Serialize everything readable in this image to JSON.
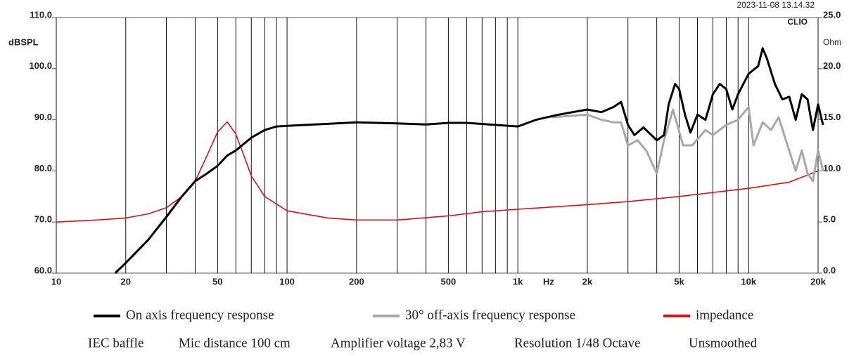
{
  "chart_data": {
    "type": "line",
    "timestamp": "2023-11-08 13.14.32",
    "brand": "CLIO",
    "ylabel": "dBSPL",
    "y2label": "Ohm",
    "xlabel": "Hz",
    "log_x": true,
    "grid": true,
    "xlim": [
      10,
      20000
    ],
    "xticks": [
      10,
      20,
      50,
      100,
      200,
      500,
      {
        "value": 1000,
        "label": "1k"
      },
      {
        "value": 2000,
        "label": "2k"
      },
      {
        "value": 5000,
        "label": "5k"
      },
      {
        "value": 10000,
        "label": "10k"
      },
      {
        "value": 20000,
        "label": "20k"
      }
    ],
    "ylim": [
      60,
      110
    ],
    "yticks": [
      {
        "value": 60,
        "label": "60.0"
      },
      {
        "value": 70,
        "label": "70.0"
      },
      {
        "value": 80,
        "label": "80.0"
      },
      {
        "value": 90,
        "label": "90.0"
      },
      {
        "value": 100,
        "label": "100.0"
      },
      {
        "value": 110,
        "label": "110.0"
      }
    ],
    "y2lim": [
      0,
      25
    ],
    "y2ticks": [
      {
        "value": 0,
        "label": "0.0"
      },
      {
        "value": 5,
        "label": "5.0"
      },
      {
        "value": 10,
        "label": "10.0"
      },
      {
        "value": 15,
        "label": "15.0"
      },
      {
        "value": 20,
        "label": "20.0"
      },
      {
        "value": 25,
        "label": "25.0"
      }
    ],
    "series": [
      {
        "name": "On axis frequency response",
        "color": "#000000",
        "x": [
          18,
          20,
          25,
          30,
          35,
          40,
          45,
          50,
          55,
          60,
          70,
          80,
          90,
          100,
          120,
          150,
          200,
          300,
          400,
          500,
          600,
          800,
          1000,
          1200,
          1500,
          2000,
          2300,
          2600,
          2800,
          3000,
          3200,
          3500,
          4000,
          4300,
          4500,
          4800,
          5000,
          5300,
          5600,
          6000,
          6500,
          7000,
          7500,
          8000,
          8500,
          9000,
          10000,
          11000,
          11500,
          12000,
          13000,
          14000,
          15000,
          16000,
          17000,
          18000,
          19000,
          20000,
          21000
        ],
        "values": [
          60,
          62,
          66.5,
          71,
          75,
          78,
          79.5,
          81,
          83,
          84,
          86.5,
          88,
          88.7,
          88.8,
          89,
          89.2,
          89.5,
          89.3,
          89.1,
          89.4,
          89.4,
          89,
          88.7,
          90,
          91,
          92,
          91.5,
          92.5,
          93.5,
          89,
          87,
          88.5,
          86,
          87,
          93,
          97,
          96,
          91,
          87.5,
          91,
          90,
          95,
          97,
          96,
          92,
          95,
          99,
          100.5,
          104,
          102,
          97,
          94,
          94.5,
          90,
          95,
          94,
          88,
          93,
          89
        ]
      },
      {
        "name": "30° off-axis frequency response",
        "color": "#a8a8a8",
        "x": [
          1400,
          2000,
          2300,
          2600,
          2800,
          3000,
          3300,
          3600,
          4000,
          4300,
          4700,
          5200,
          5700,
          6500,
          7000,
          8000,
          9000,
          10000,
          10500,
          11500,
          12500,
          13500,
          14500,
          16000,
          17000,
          18000,
          19000,
          20000,
          21000
        ],
        "values": [
          90.5,
          91,
          90,
          89.5,
          89.5,
          85,
          86,
          84,
          79.5,
          86,
          92,
          85,
          85,
          88,
          87,
          89,
          90,
          92.5,
          85,
          89.5,
          88,
          90.5,
          86,
          80,
          84,
          79.5,
          78,
          84,
          80
        ]
      },
      {
        "name": "impedance",
        "color": "#e01010",
        "axis": "y2",
        "x": [
          10,
          15,
          20,
          25,
          30,
          35,
          40,
          45,
          50,
          55,
          60,
          65,
          70,
          80,
          100,
          150,
          200,
          300,
          500,
          700,
          1000,
          2000,
          3000,
          5000,
          10000,
          15000,
          20000
        ],
        "values": [
          5.0,
          5.2,
          5.4,
          5.8,
          6.4,
          7.5,
          9.0,
          11.5,
          13.8,
          14.8,
          13.6,
          11.5,
          9.5,
          7.5,
          6.1,
          5.4,
          5.2,
          5.2,
          5.6,
          6.0,
          6.25,
          6.7,
          7.0,
          7.5,
          8.3,
          8.9,
          10.0
        ]
      }
    ],
    "notes": [
      "IEC baffle",
      "Mic distance 100 cm",
      "Amplifier voltage 2,83 V",
      "Resolution 1/48 Octave",
      "Unsmoothed"
    ]
  }
}
